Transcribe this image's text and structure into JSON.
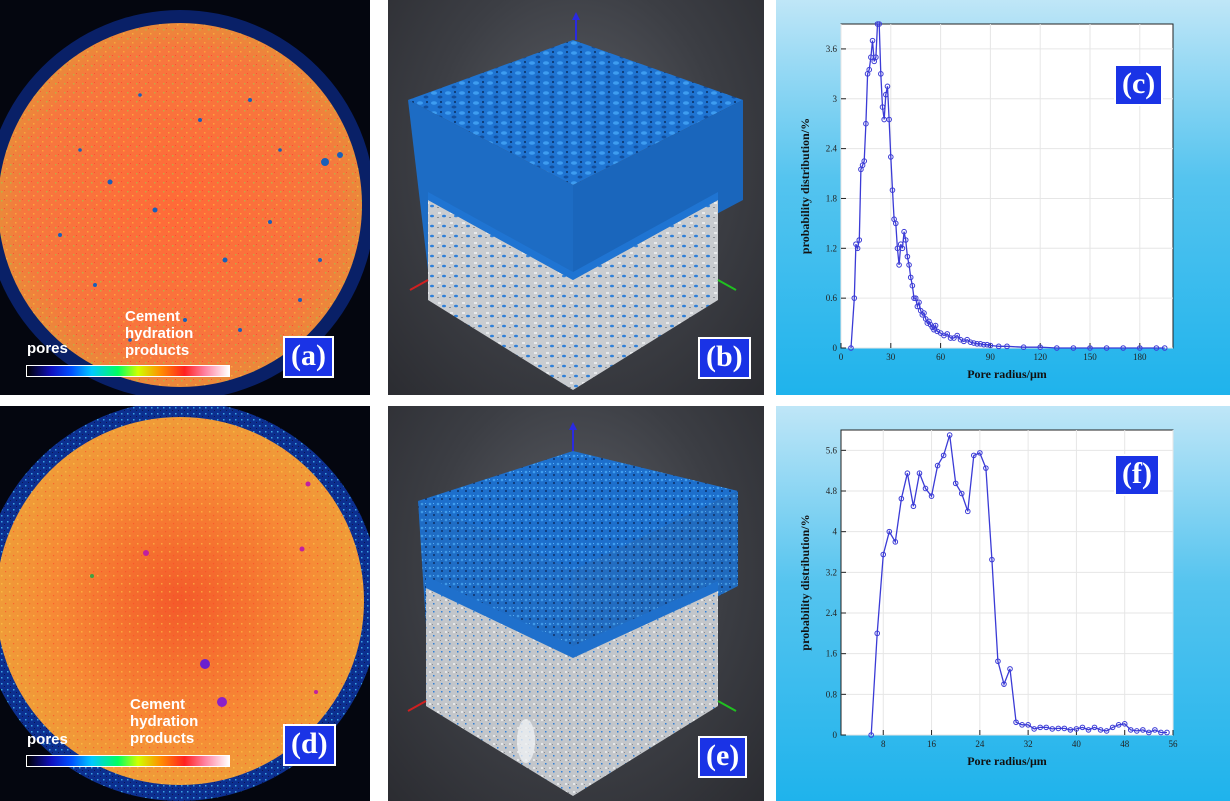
{
  "figure": {
    "panels": {
      "a": {
        "badge": "(a)",
        "label_pores": "pores",
        "label_cement": [
          "Cement",
          "hydration",
          "products"
        ]
      },
      "b": {
        "badge": "(b)"
      },
      "c": {
        "badge": "(c)"
      },
      "d": {
        "badge": "(d)",
        "label_pores": "pores",
        "label_cement": [
          "Cement",
          "hydration",
          "products"
        ]
      },
      "e": {
        "badge": "(e)"
      },
      "f": {
        "badge": "(f)"
      }
    },
    "colors": {
      "badge_bg": "#1a33e6",
      "pore_blue": "#1e78d8",
      "chart_line": "#3b3bd6"
    }
  },
  "chart_data": [
    {
      "id": "c",
      "type": "line",
      "xlabel": "Pore radius/μm",
      "ylabel": "probability distribution/%",
      "xlim": [
        0,
        200
      ],
      "ylim": [
        0,
        3.9
      ],
      "xticks": [
        0,
        30,
        60,
        90,
        120,
        150,
        180
      ],
      "yticks": [
        0,
        0.6,
        1.2,
        1.8,
        2.4,
        3,
        3.6
      ],
      "ytick_labels": [
        "0",
        "0.6",
        "1.2",
        "1.8",
        "2.4",
        "3",
        "3.6"
      ],
      "x": [
        6,
        8,
        9,
        10,
        11,
        12,
        13,
        14,
        15,
        16,
        17,
        18,
        19,
        20,
        21,
        22,
        23,
        24,
        25,
        26,
        27,
        28,
        29,
        30,
        31,
        32,
        33,
        34,
        35,
        36,
        37,
        38,
        39,
        40,
        41,
        42,
        43,
        44,
        45,
        46,
        47,
        48,
        49,
        50,
        51,
        52,
        53,
        54,
        55,
        56,
        57,
        58,
        60,
        62,
        64,
        66,
        68,
        70,
        72,
        74,
        76,
        78,
        80,
        82,
        84,
        86,
        88,
        90,
        95,
        100,
        110,
        120,
        130,
        140,
        150,
        160,
        170,
        180,
        190,
        195
      ],
      "values": [
        0,
        0.6,
        1.25,
        1.2,
        1.3,
        2.15,
        2.2,
        2.25,
        2.7,
        3.3,
        3.35,
        3.5,
        3.7,
        3.45,
        3.5,
        3.9,
        3.9,
        3.3,
        2.9,
        2.75,
        3.05,
        3.15,
        2.75,
        2.3,
        1.9,
        1.55,
        1.5,
        1.2,
        1.0,
        1.25,
        1.2,
        1.4,
        1.3,
        1.1,
        1.0,
        0.85,
        0.75,
        0.6,
        0.6,
        0.5,
        0.55,
        0.45,
        0.4,
        0.42,
        0.35,
        0.3,
        0.32,
        0.28,
        0.25,
        0.22,
        0.27,
        0.2,
        0.18,
        0.15,
        0.17,
        0.12,
        0.12,
        0.15,
        0.1,
        0.08,
        0.1,
        0.07,
        0.06,
        0.05,
        0.05,
        0.04,
        0.04,
        0.03,
        0.02,
        0.02,
        0.01,
        0.01,
        0.0,
        0.0,
        0.0,
        0.0,
        0.0,
        0.0,
        0.0,
        0.0
      ]
    },
    {
      "id": "f",
      "type": "line",
      "xlabel": "Pore radius/μm",
      "ylabel": "probability distribution/%",
      "xlim": [
        1,
        56
      ],
      "ylim": [
        0,
        6
      ],
      "xticks": [
        8,
        16,
        24,
        32,
        40,
        48,
        56
      ],
      "yticks": [
        0,
        0.8,
        1.6,
        2.4,
        3.2,
        4,
        4.8,
        5.6
      ],
      "ytick_labels": [
        "0",
        "0.8",
        "1.6",
        "2.4",
        "3.2",
        "4",
        "4.8",
        "5.6"
      ],
      "x": [
        6,
        7,
        8,
        9,
        10,
        11,
        12,
        13,
        14,
        15,
        16,
        17,
        18,
        19,
        20,
        21,
        22,
        23,
        24,
        25,
        26,
        27,
        28,
        29,
        30,
        31,
        32,
        33,
        34,
        35,
        36,
        37,
        38,
        39,
        40,
        41,
        42,
        43,
        44,
        45,
        46,
        47,
        48,
        49,
        50,
        51,
        52,
        53,
        54,
        55
      ],
      "values": [
        0,
        2.0,
        3.55,
        4.0,
        3.8,
        4.65,
        5.15,
        4.5,
        5.15,
        4.85,
        4.7,
        5.3,
        5.5,
        5.9,
        4.95,
        4.75,
        4.4,
        5.5,
        5.55,
        5.25,
        3.45,
        1.45,
        1.0,
        1.3,
        0.25,
        0.2,
        0.2,
        0.12,
        0.15,
        0.15,
        0.12,
        0.13,
        0.13,
        0.1,
        0.12,
        0.15,
        0.1,
        0.15,
        0.1,
        0.08,
        0.15,
        0.2,
        0.22,
        0.1,
        0.08,
        0.1,
        0.05,
        0.1,
        0.05,
        0.05
      ]
    }
  ]
}
